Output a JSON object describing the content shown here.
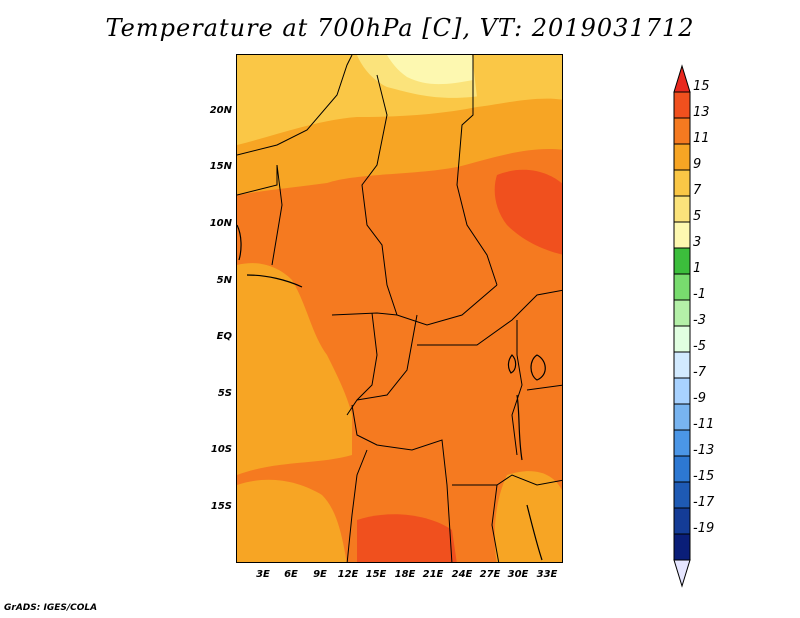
{
  "title": "Temperature at 700hPa [C], VT: 2019031712",
  "credit": "GrADS: IGES/COLA",
  "lat_labels": [
    "20N",
    "15N",
    "10N",
    "5N",
    "EQ",
    "5S",
    "10S",
    "15S"
  ],
  "lon_labels": [
    "3E",
    "6E",
    "9E",
    "12E",
    "15E",
    "18E",
    "21E",
    "24E",
    "27E",
    "30E",
    "33E"
  ],
  "colorbar": {
    "ticks": [
      "15",
      "13",
      "11",
      "9",
      "7",
      "5",
      "3",
      "1",
      "-1",
      "-3",
      "-5",
      "-7",
      "-9",
      "-11",
      "-13",
      "-15",
      "-17",
      "-19"
    ],
    "colors": [
      "#e8281e",
      "#f0501e",
      "#f57a20",
      "#f7a524",
      "#fac746",
      "#fbe37b",
      "#fdf8b0",
      "#3cbe3c",
      "#78dc6e",
      "#b4f0a8",
      "#e1ffe1",
      "#d2eaff",
      "#a8d2ff",
      "#78b4f0",
      "#4b96e6",
      "#2d78d2",
      "#1e5ab4",
      "#143c96",
      "#0a1e78",
      "#e6e6ff"
    ]
  }
}
